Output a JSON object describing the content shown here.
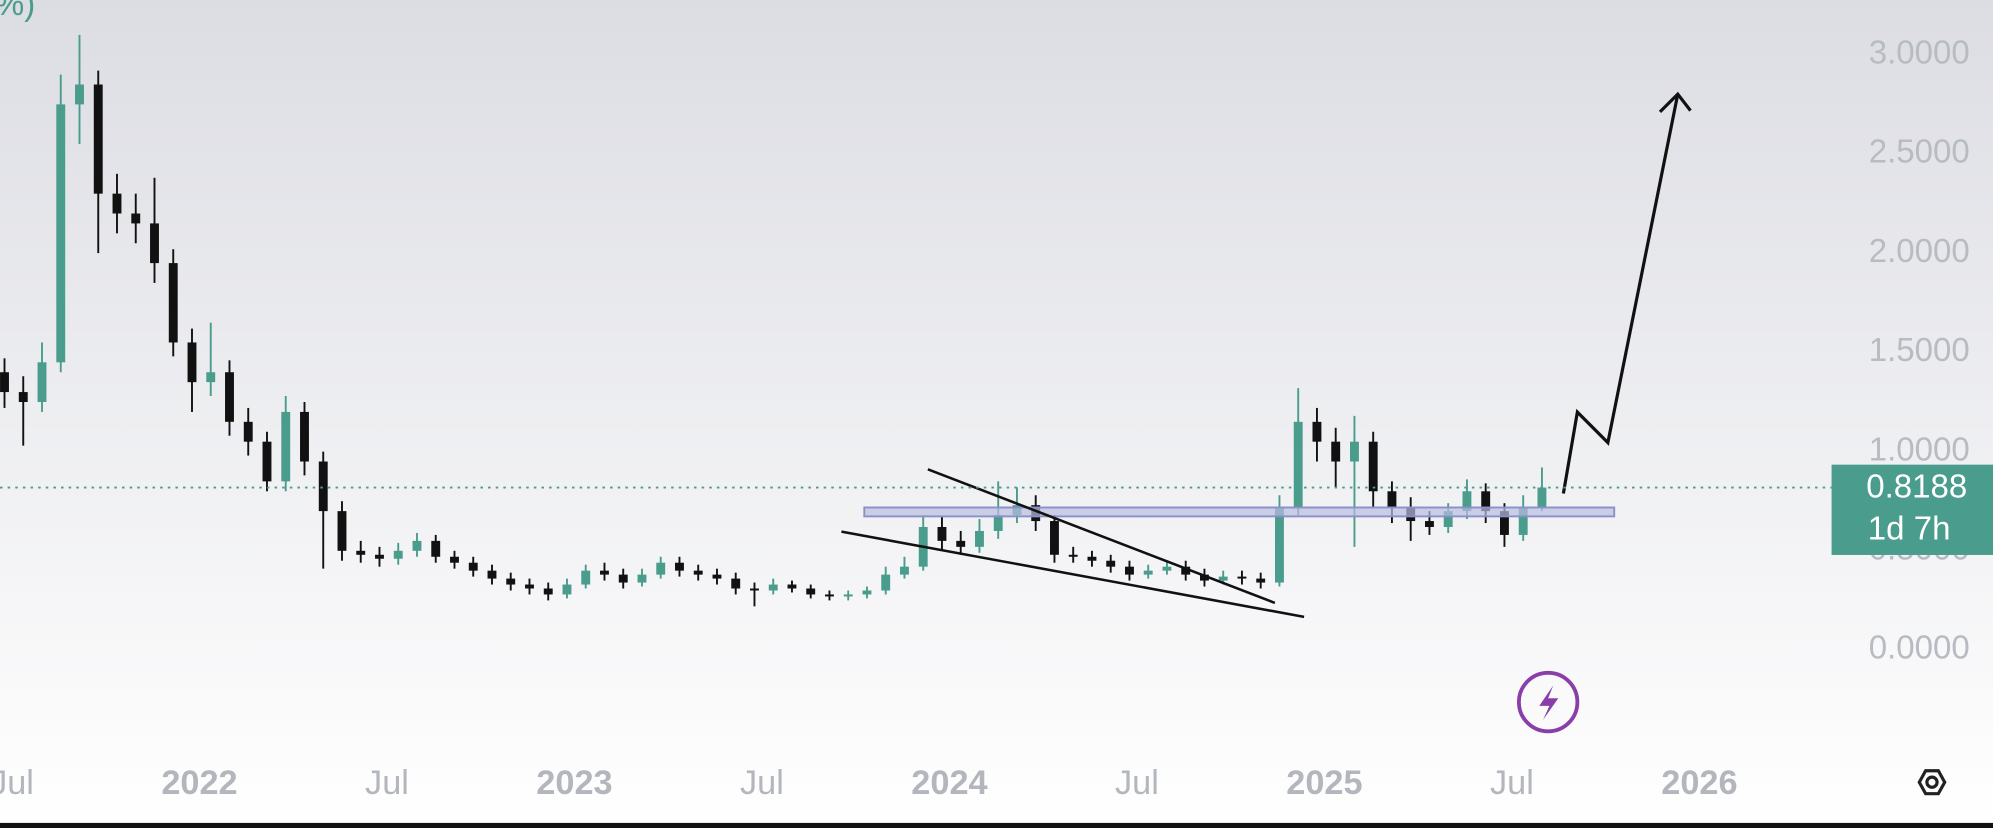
{
  "chart_data": {
    "type": "candlestick",
    "title": "%)",
    "x": [
      2021.48,
      2021.53,
      2021.58,
      2021.63,
      2021.68,
      2021.73,
      2021.78,
      2021.83,
      2021.88,
      2021.93,
      2021.98,
      2022.03,
      2022.08,
      2022.13,
      2022.18,
      2022.23,
      2022.28,
      2022.33,
      2022.38,
      2022.43,
      2022.48,
      2022.53,
      2022.58,
      2022.63,
      2022.68,
      2022.73,
      2022.78,
      2022.83,
      2022.88,
      2022.93,
      2022.98,
      2023.03,
      2023.08,
      2023.13,
      2023.18,
      2023.23,
      2023.28,
      2023.33,
      2023.38,
      2023.43,
      2023.48,
      2023.53,
      2023.58,
      2023.63,
      2023.68,
      2023.73,
      2023.78,
      2023.83,
      2023.88,
      2023.93,
      2023.98,
      2024.03,
      2024.08,
      2024.13,
      2024.18,
      2024.23,
      2024.28,
      2024.33,
      2024.38,
      2024.43,
      2024.48,
      2024.53,
      2024.58,
      2024.63,
      2024.68,
      2024.73,
      2024.78,
      2024.83,
      2024.88,
      2024.93,
      2024.98,
      2025.03,
      2025.08,
      2025.13,
      2025.18,
      2025.23,
      2025.28,
      2025.33,
      2025.38,
      2025.43,
      2025.48,
      2025.53,
      2025.58
    ],
    "open": [
      1.4,
      1.3,
      1.25,
      1.45,
      2.75,
      2.85,
      2.3,
      2.2,
      2.15,
      1.95,
      1.55,
      1.35,
      1.4,
      1.15,
      1.05,
      0.85,
      1.2,
      0.95,
      0.7,
      0.5,
      0.48,
      0.46,
      0.5,
      0.55,
      0.47,
      0.44,
      0.4,
      0.36,
      0.33,
      0.31,
      0.28,
      0.33,
      0.4,
      0.38,
      0.34,
      0.38,
      0.44,
      0.4,
      0.38,
      0.36,
      0.31,
      0.3,
      0.33,
      0.31,
      0.28,
      0.27,
      0.28,
      0.3,
      0.38,
      0.42,
      0.62,
      0.55,
      0.52,
      0.6,
      0.68,
      0.73,
      0.65,
      0.48,
      0.47,
      0.45,
      0.42,
      0.38,
      0.4,
      0.42,
      0.38,
      0.35,
      0.37,
      0.36,
      0.34,
      0.72,
      1.15,
      1.05,
      0.95,
      1.05,
      0.8,
      0.72,
      0.65,
      0.62,
      0.7,
      0.8,
      0.7,
      0.58,
      0.72
    ],
    "high": [
      1.47,
      1.38,
      1.55,
      2.9,
      3.1,
      2.92,
      2.4,
      2.3,
      2.38,
      2.02,
      1.62,
      1.65,
      1.46,
      1.22,
      1.1,
      1.28,
      1.25,
      1.0,
      0.75,
      0.55,
      0.52,
      0.54,
      0.59,
      0.58,
      0.5,
      0.47,
      0.43,
      0.39,
      0.36,
      0.34,
      0.36,
      0.43,
      0.44,
      0.41,
      0.41,
      0.47,
      0.47,
      0.43,
      0.41,
      0.39,
      0.34,
      0.36,
      0.35,
      0.33,
      0.3,
      0.3,
      0.32,
      0.42,
      0.47,
      0.68,
      0.67,
      0.6,
      0.66,
      0.85,
      0.82,
      0.78,
      0.68,
      0.52,
      0.5,
      0.48,
      0.45,
      0.43,
      0.45,
      0.45,
      0.41,
      0.4,
      0.4,
      0.39,
      0.78,
      1.32,
      1.22,
      1.12,
      1.18,
      1.1,
      0.85,
      0.77,
      0.7,
      0.74,
      0.86,
      0.84,
      0.74,
      0.78,
      0.92
    ],
    "low": [
      1.22,
      1.03,
      1.2,
      1.4,
      2.55,
      2.0,
      2.1,
      2.05,
      1.85,
      1.48,
      1.2,
      1.28,
      1.08,
      0.98,
      0.8,
      0.8,
      0.88,
      0.41,
      0.45,
      0.44,
      0.42,
      0.43,
      0.47,
      0.44,
      0.41,
      0.37,
      0.33,
      0.3,
      0.28,
      0.25,
      0.26,
      0.31,
      0.35,
      0.31,
      0.32,
      0.36,
      0.37,
      0.35,
      0.33,
      0.28,
      0.22,
      0.28,
      0.29,
      0.26,
      0.25,
      0.25,
      0.26,
      0.28,
      0.36,
      0.4,
      0.5,
      0.48,
      0.49,
      0.56,
      0.64,
      0.6,
      0.44,
      0.44,
      0.42,
      0.39,
      0.35,
      0.36,
      0.38,
      0.35,
      0.32,
      0.33,
      0.33,
      0.31,
      0.32,
      0.68,
      0.95,
      0.82,
      0.52,
      0.72,
      0.64,
      0.55,
      0.58,
      0.59,
      0.66,
      0.64,
      0.52,
      0.55,
      0.7
    ],
    "close": [
      1.3,
      1.25,
      1.45,
      2.75,
      2.85,
      2.3,
      2.2,
      2.15,
      1.95,
      1.55,
      1.35,
      1.4,
      1.15,
      1.05,
      0.85,
      1.2,
      0.95,
      0.7,
      0.5,
      0.48,
      0.46,
      0.5,
      0.55,
      0.47,
      0.44,
      0.4,
      0.36,
      0.33,
      0.31,
      0.28,
      0.33,
      0.4,
      0.38,
      0.34,
      0.38,
      0.44,
      0.4,
      0.38,
      0.36,
      0.31,
      0.3,
      0.33,
      0.31,
      0.28,
      0.27,
      0.28,
      0.3,
      0.38,
      0.42,
      0.62,
      0.55,
      0.52,
      0.6,
      0.68,
      0.73,
      0.65,
      0.48,
      0.47,
      0.45,
      0.42,
      0.38,
      0.4,
      0.42,
      0.38,
      0.35,
      0.37,
      0.36,
      0.34,
      0.72,
      1.15,
      1.05,
      0.95,
      1.05,
      0.8,
      0.72,
      0.65,
      0.62,
      0.7,
      0.8,
      0.7,
      0.58,
      0.72,
      0.8188
    ],
    "up_color": "#4a9c8c",
    "down_color": "#111111",
    "xlim": [
      2021.468,
      2026.349
    ],
    "xticks": [
      {
        "value": 2021.5,
        "label": "Jul"
      },
      2022,
      {
        "value": 2022.5,
        "label": "Jul"
      },
      2023,
      {
        "value": 2023.5,
        "label": "Jul"
      },
      2024,
      {
        "value": 2024.5,
        "label": "Jul"
      },
      2025,
      {
        "value": 2025.5,
        "label": "Jul"
      },
      2026
    ],
    "ylim": [
      -0.506,
      3.276
    ],
    "yticks": [
      {
        "value": 0,
        "label": "0.0000"
      },
      {
        "value": 0.5,
        "label": "0.5000"
      },
      {
        "value": 1,
        "label": "1.0000"
      },
      {
        "value": 1.5,
        "label": "1.5000"
      },
      {
        "value": 2,
        "label": "2.0000"
      },
      {
        "value": 2.5,
        "label": "2.5000"
      },
      {
        "value": 3,
        "label": "3.0000"
      }
    ],
    "last_price": 0.8188,
    "countdown": "1d 7h",
    "grid": false
  }
}
